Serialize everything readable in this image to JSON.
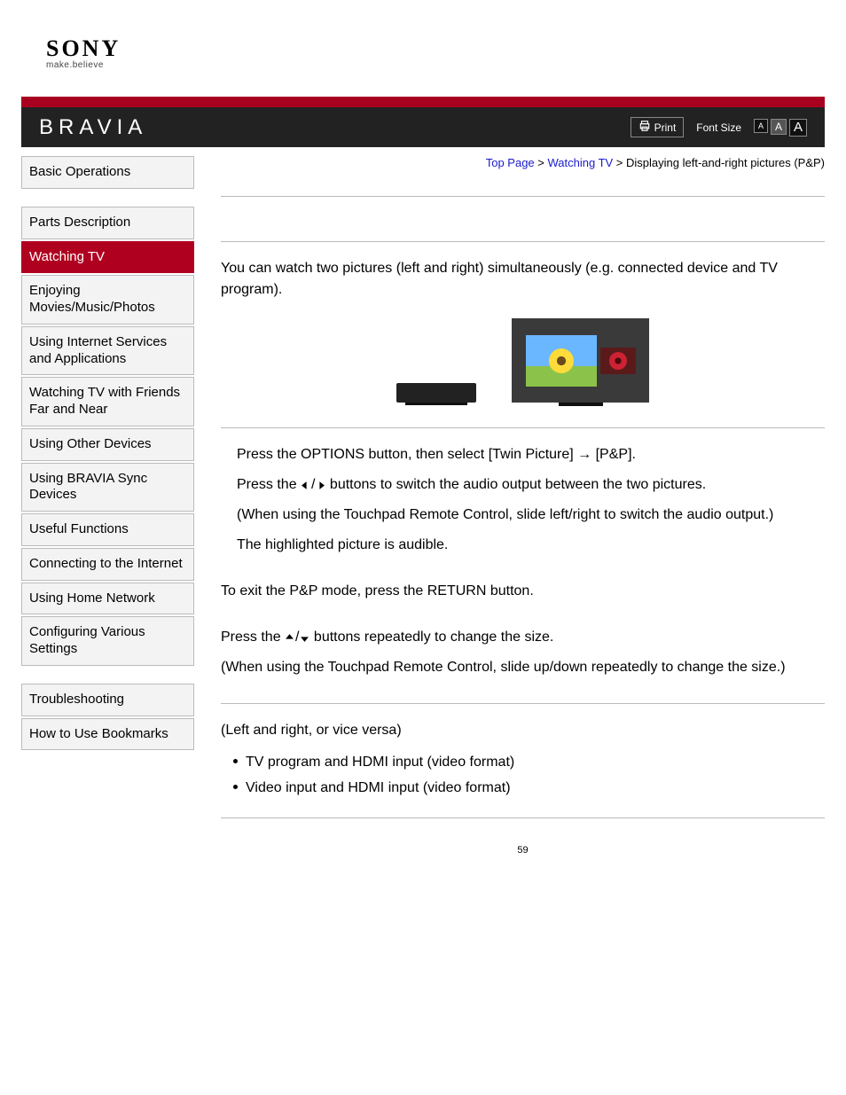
{
  "logo": {
    "brand": "SONY",
    "tagline": "make.believe"
  },
  "header": {
    "product": "BRAVIA",
    "print_label": "Print",
    "font_size_label": "Font Size",
    "font_glyph": "A"
  },
  "breadcrumb": {
    "top": "Top Page",
    "sep": " > ",
    "cat": "Watching TV",
    "current": "Displaying left-and-right pictures (P&P)"
  },
  "nav_groups": [
    {
      "items": [
        {
          "label": "Basic Operations",
          "active": false
        }
      ]
    },
    {
      "items": [
        {
          "label": "Parts Description",
          "active": false
        },
        {
          "label": "Watching TV",
          "active": true
        },
        {
          "label": "Enjoying Movies/Music/Photos",
          "active": false
        },
        {
          "label": "Using Internet Services and Applications",
          "active": false
        },
        {
          "label": "Watching TV with Friends Far and Near",
          "active": false
        },
        {
          "label": "Using Other Devices",
          "active": false
        },
        {
          "label": "Using BRAVIA Sync Devices",
          "active": false
        },
        {
          "label": "Useful Functions",
          "active": false
        },
        {
          "label": "Connecting to the Internet",
          "active": false
        },
        {
          "label": "Using Home Network",
          "active": false
        },
        {
          "label": "Configuring Various Settings",
          "active": false
        }
      ]
    },
    {
      "items": [
        {
          "label": "Troubleshooting",
          "active": false
        },
        {
          "label": "How to Use Bookmarks",
          "active": false
        }
      ]
    }
  ],
  "intro": "You can watch two pictures (left and right) simultaneously (e.g. connected device and TV program).",
  "steps": {
    "s1": "Press the OPTIONS button, then select [Twin Picture] → [P&P].",
    "s2a": "Press the ",
    "s2b": " buttons to switch the audio output between the two pictures.",
    "s3": "(When using the Touchpad Remote Control, slide left/right to switch the audio output.)",
    "s4": "The highlighted picture is audible."
  },
  "exit": "To exit the P&P mode, press the RETURN button.",
  "size": {
    "s1a": "Press the ",
    "s1b": " buttons repeatedly to change the size.",
    "s2": "(When using the Touchpad Remote Control, slide up/down repeatedly to change the size.)"
  },
  "combo": {
    "caption": "(Left and right, or vice versa)",
    "items": [
      "TV program and HDMI input (video format)",
      "Video input and HDMI input (video format)"
    ]
  },
  "page_number": "59",
  "colors": {
    "accent_red": "#a8001f",
    "nav_active": "#b00020",
    "link": "#1b1bcc",
    "header_bg": "#222222"
  }
}
